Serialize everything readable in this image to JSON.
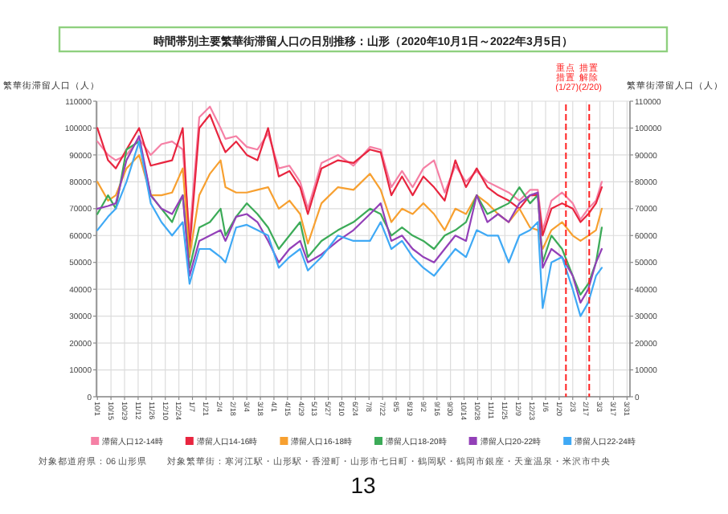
{
  "chart_data": {
    "type": "line",
    "title": "時間帯別主要繁華街滞留人口の日別推移：山形（2020年10月1日～2022年3月5日）",
    "ylabel": "繁華街滞留人口（人）",
    "y2label": "繁華街滞留人口（人）",
    "x": [
      "2020-10-01",
      "2020-10-12",
      "2020-10-20",
      "2020-10-31",
      "2020-11-13",
      "2020-11-25",
      "2020-12-06",
      "2020-12-17",
      "2020-12-28",
      "2021-01-04",
      "2021-01-14",
      "2021-01-25",
      "2021-02-05",
      "2021-02-10",
      "2021-02-21",
      "2021-03-04",
      "2021-03-15",
      "2021-03-26",
      "2021-04-06",
      "2021-04-17",
      "2021-04-28",
      "2021-05-06",
      "2021-05-20",
      "2021-06-06",
      "2021-06-22",
      "2021-07-09",
      "2021-07-20",
      "2021-07-31",
      "2021-08-11",
      "2021-08-22",
      "2021-09-02",
      "2021-09-13",
      "2021-09-24",
      "2021-10-05",
      "2021-10-16",
      "2021-10-27",
      "2021-11-07",
      "2021-11-18",
      "2021-11-29",
      "2021-12-10",
      "2021-12-21",
      "2021-12-29",
      "2022-01-03",
      "2022-01-12",
      "2022-01-23",
      "2022-02-03",
      "2022-02-11",
      "2022-02-19",
      "2022-02-27",
      "2022-03-05"
    ],
    "series": [
      {
        "name": "滞留人口12-14時",
        "color": "#f580a5",
        "values": [
          95000,
          90000,
          88000,
          90000,
          96000,
          90000,
          94000,
          95000,
          92000,
          60000,
          104000,
          108000,
          100000,
          96000,
          97000,
          93000,
          92000,
          98000,
          85000,
          86000,
          80000,
          70000,
          87000,
          90000,
          86000,
          93000,
          92000,
          78000,
          84000,
          78000,
          85000,
          88000,
          76000,
          86000,
          80000,
          84000,
          80000,
          78000,
          76000,
          73000,
          77000,
          77000,
          62000,
          73000,
          76000,
          72000,
          66000,
          70000,
          73000,
          80000
        ]
      },
      {
        "name": "滞留人口14-16時",
        "color": "#e8253f",
        "values": [
          100000,
          88000,
          85000,
          92000,
          100000,
          86000,
          87000,
          88000,
          100000,
          55000,
          100000,
          105000,
          95000,
          91000,
          95000,
          90000,
          88000,
          100000,
          82000,
          84000,
          78000,
          68000,
          85000,
          88000,
          87000,
          92000,
          91000,
          75000,
          82000,
          75000,
          82000,
          78000,
          73000,
          88000,
          78000,
          85000,
          78000,
          75000,
          73000,
          70000,
          75000,
          75000,
          60000,
          70000,
          72000,
          70000,
          65000,
          68000,
          72000,
          78000
        ]
      },
      {
        "name": "滞留人口16-18時",
        "color": "#f7a030",
        "values": [
          80000,
          73000,
          75000,
          85000,
          90000,
          75000,
          75000,
          76000,
          85000,
          52000,
          75000,
          83000,
          88000,
          78000,
          76000,
          76000,
          77000,
          78000,
          70000,
          73000,
          68000,
          57000,
          72000,
          78000,
          77000,
          83000,
          77000,
          65000,
          70000,
          68000,
          72000,
          68000,
          62000,
          70000,
          68000,
          75000,
          72000,
          68000,
          65000,
          70000,
          63000,
          62000,
          55000,
          62000,
          65000,
          60000,
          58000,
          60000,
          62000,
          70000
        ]
      },
      {
        "name": "滞留人口18-20時",
        "color": "#3cab58",
        "values": [
          68000,
          75000,
          70000,
          92000,
          95000,
          75000,
          70000,
          65000,
          75000,
          48000,
          63000,
          65000,
          70000,
          60000,
          67000,
          72000,
          68000,
          63000,
          55000,
          60000,
          65000,
          52000,
          58000,
          62000,
          65000,
          70000,
          68000,
          60000,
          63000,
          60000,
          58000,
          55000,
          60000,
          62000,
          65000,
          75000,
          68000,
          70000,
          72000,
          78000,
          72000,
          75000,
          50000,
          60000,
          55000,
          45000,
          38000,
          42000,
          50000,
          63000
        ]
      },
      {
        "name": "滞留人口20-22時",
        "color": "#9340b8",
        "values": [
          70000,
          71000,
          72000,
          88000,
          97000,
          75000,
          70000,
          68000,
          75000,
          45000,
          58000,
          60000,
          62000,
          58000,
          67000,
          68000,
          65000,
          58000,
          50000,
          55000,
          58000,
          50000,
          53000,
          58000,
          62000,
          68000,
          72000,
          58000,
          60000,
          55000,
          52000,
          50000,
          55000,
          60000,
          58000,
          75000,
          65000,
          68000,
          65000,
          72000,
          75000,
          76000,
          48000,
          55000,
          52000,
          45000,
          35000,
          40000,
          50000,
          55000
        ]
      },
      {
        "name": "滞留人口22-24時",
        "color": "#3fa9f5",
        "values": [
          62000,
          67000,
          70000,
          80000,
          95000,
          72000,
          65000,
          60000,
          65000,
          42000,
          55000,
          55000,
          52000,
          50000,
          63000,
          64000,
          62000,
          60000,
          48000,
          52000,
          55000,
          47000,
          52000,
          60000,
          58000,
          58000,
          65000,
          55000,
          58000,
          52000,
          48000,
          45000,
          50000,
          55000,
          52000,
          62000,
          60000,
          60000,
          50000,
          60000,
          62000,
          65000,
          33000,
          50000,
          52000,
          40000,
          30000,
          35000,
          45000,
          48000
        ]
      }
    ],
    "xlim": [
      "2020-09-30",
      "2022-04-03"
    ],
    "xticks": [
      {
        "value": "2020-10-01",
        "label": "10/1"
      },
      {
        "value": "2020-10-15",
        "label": "10/15"
      },
      {
        "value": "2020-10-29",
        "label": "10/29"
      },
      {
        "value": "2020-11-12",
        "label": "11/12"
      },
      {
        "value": "2020-11-26",
        "label": "11/26"
      },
      {
        "value": "2020-12-10",
        "label": "12/10"
      },
      {
        "value": "2020-12-24",
        "label": "12/24"
      },
      {
        "value": "2021-01-07",
        "label": "1/7"
      },
      {
        "value": "2021-01-21",
        "label": "1/21"
      },
      {
        "value": "2021-02-04",
        "label": "2/4"
      },
      {
        "value": "2021-02-18",
        "label": "2/18"
      },
      {
        "value": "2021-03-04",
        "label": "3/4"
      },
      {
        "value": "2021-03-18",
        "label": "3/18"
      },
      {
        "value": "2021-04-01",
        "label": "4/1"
      },
      {
        "value": "2021-04-15",
        "label": "4/15"
      },
      {
        "value": "2021-04-29",
        "label": "4/29"
      },
      {
        "value": "2021-05-13",
        "label": "5/13"
      },
      {
        "value": "2021-05-27",
        "label": "5/27"
      },
      {
        "value": "2021-06-10",
        "label": "6/10"
      },
      {
        "value": "2021-06-24",
        "label": "6/24"
      },
      {
        "value": "2021-07-08",
        "label": "7/8"
      },
      {
        "value": "2021-07-22",
        "label": "7/22"
      },
      {
        "value": "2021-08-05",
        "label": "8/5"
      },
      {
        "value": "2021-08-19",
        "label": "8/19"
      },
      {
        "value": "2021-09-02",
        "label": "9/2"
      },
      {
        "value": "2021-09-16",
        "label": "9/16"
      },
      {
        "value": "2021-09-30",
        "label": "9/30"
      },
      {
        "value": "2021-10-14",
        "label": "10/14"
      },
      {
        "value": "2021-10-28",
        "label": "10/28"
      },
      {
        "value": "2021-11-11",
        "label": "11/11"
      },
      {
        "value": "2021-11-25",
        "label": "11/25"
      },
      {
        "value": "2021-12-09",
        "label": "12/9"
      },
      {
        "value": "2021-12-23",
        "label": "12/23"
      },
      {
        "value": "2022-01-06",
        "label": "1/6"
      },
      {
        "value": "2022-01-20",
        "label": "1/20"
      },
      {
        "value": "2022-02-03",
        "label": "2/3"
      },
      {
        "value": "2022-02-17",
        "label": "2/17"
      },
      {
        "value": "2022-03-03",
        "label": "3/3"
      },
      {
        "value": "2022-03-17",
        "label": "3/17"
      },
      {
        "value": "2022-03-31",
        "label": "3/31"
      }
    ],
    "ylim": [
      0,
      110000
    ],
    "yticks": [
      0,
      10000,
      20000,
      30000,
      40000,
      50000,
      60000,
      70000,
      80000,
      90000,
      100000,
      110000
    ],
    "y2lim": [
      0,
      110000
    ],
    "y2ticks": [
      0,
      10000,
      20000,
      30000,
      40000,
      50000,
      60000,
      70000,
      80000,
      90000,
      100000,
      110000
    ],
    "ref_lines": [
      {
        "axis": "x",
        "value": "2022-01-27",
        "label": "重点措置(1/27)",
        "color": "#ff2020",
        "line_style": "dashed"
      },
      {
        "axis": "x",
        "value": "2022-02-20",
        "label": "措置解除(2/20)",
        "color": "#ff2020",
        "line_style": "dashed"
      }
    ],
    "grid": true,
    "legend": "bottom",
    "marker": "none",
    "line_style": "solid",
    "annotations": [
      "対象都道府県：06 山形県",
      "対象繁華街：寒河江駅・山形駅・香澄町・山形市七日町・鶴岡駅・鶴岡市銀座・天童温泉・米沢市中央",
      "13"
    ]
  }
}
